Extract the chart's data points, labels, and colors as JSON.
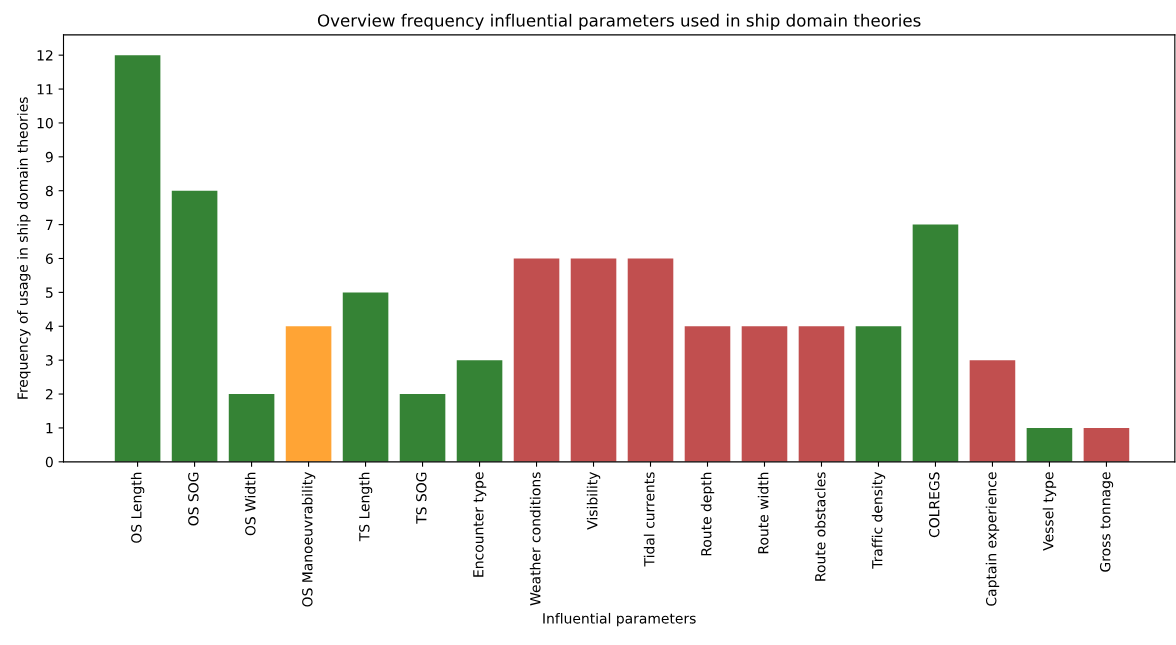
{
  "chart_data": {
    "type": "bar",
    "title": "Overview frequency influential parameters used in ship domain theories",
    "xlabel": "Influential parameters",
    "ylabel": "Frequency of usage in ship domain theories",
    "categories": [
      "OS Length",
      "OS SOG",
      "OS Width",
      "OS Manoeuvrability",
      "TS Length",
      "TS SOG",
      "Encounter type",
      "Weather conditions",
      "Visibility",
      "Tidal currents",
      "Route depth",
      "Route width",
      "Route obstacles",
      "Traffic density",
      "COLREGS",
      "Captain experience",
      "Vessel type",
      "Gross tonnage"
    ],
    "values": [
      12,
      8,
      2,
      4,
      5,
      2,
      3,
      6,
      6,
      6,
      4,
      4,
      4,
      4,
      7,
      3,
      1,
      1
    ],
    "colors": [
      "#358335",
      "#358335",
      "#358335",
      "#ffa435",
      "#358335",
      "#358335",
      "#358335",
      "#c14f4f",
      "#c14f4f",
      "#c14f4f",
      "#c14f4f",
      "#c14f4f",
      "#c14f4f",
      "#358335",
      "#358335",
      "#c14f4f",
      "#358335",
      "#c14f4f"
    ],
    "ylim": [
      0,
      12.6
    ],
    "yticks": [
      0,
      1,
      2,
      3,
      4,
      5,
      6,
      7,
      8,
      9,
      10,
      11,
      12
    ],
    "grid": false
  }
}
